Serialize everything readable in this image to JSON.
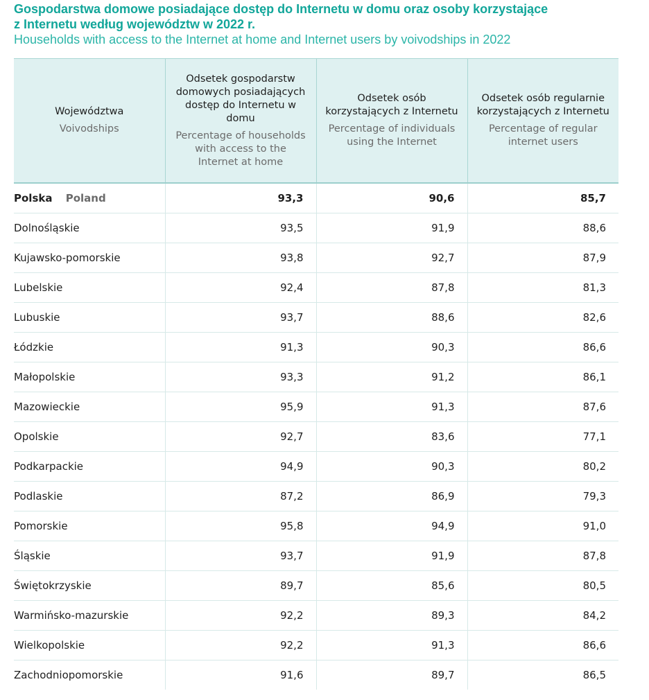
{
  "title": {
    "pl_line1": "Gospodarstwa domowe posiadające dostęp do Internetu w domu oraz osoby korzystające",
    "pl_line2": "z Internetu według województw w 2022 r.",
    "en": "Households with access to the Internet at home and Internet users by voivodships in 2022"
  },
  "headers": [
    {
      "pl": "Województwa",
      "en": "Voivodships"
    },
    {
      "pl": "Odsetek gospodarstw domowych posiadających dostęp do Internetu w domu",
      "en": "Percentage of households with access to the Internet at home"
    },
    {
      "pl": "Odsetek osób korzystających z Internetu",
      "en": "Percentage of individuals using the Internet"
    },
    {
      "pl": "Odsetek osób regularnie korzystających z Internetu",
      "en": "Percentage of regular internet users"
    }
  ],
  "total": {
    "pl": "Polska",
    "en": "Poland",
    "households": "93,3",
    "individuals": "90,6",
    "regular": "85,7"
  },
  "rows": [
    {
      "name": "Dolnośląskie",
      "households": "93,5",
      "individuals": "91,9",
      "regular": "88,6"
    },
    {
      "name": "Kujawsko-pomorskie",
      "households": "93,8",
      "individuals": "92,7",
      "regular": "87,9"
    },
    {
      "name": "Lubelskie",
      "households": "92,4",
      "individuals": "87,8",
      "regular": "81,3"
    },
    {
      "name": "Lubuskie",
      "households": "93,7",
      "individuals": "88,6",
      "regular": "82,6"
    },
    {
      "name": "Łódzkie",
      "households": "91,3",
      "individuals": "90,3",
      "regular": "86,6"
    },
    {
      "name": "Małopolskie",
      "households": "93,3",
      "individuals": "91,2",
      "regular": "86,1"
    },
    {
      "name": "Mazowieckie",
      "households": "95,9",
      "individuals": "91,3",
      "regular": "87,6"
    },
    {
      "name": "Opolskie",
      "households": "92,7",
      "individuals": "83,6",
      "regular": "77,1"
    },
    {
      "name": "Podkarpackie",
      "households": "94,9",
      "individuals": "90,3",
      "regular": "80,2"
    },
    {
      "name": "Podlaskie",
      "households": "87,2",
      "individuals": "86,9",
      "regular": "79,3"
    },
    {
      "name": "Pomorskie",
      "households": "95,8",
      "individuals": "94,9",
      "regular": "91,0"
    },
    {
      "name": "Śląskie",
      "households": "93,7",
      "individuals": "91,9",
      "regular": "87,8"
    },
    {
      "name": "Świętokrzyskie",
      "households": "89,7",
      "individuals": "85,6",
      "regular": "80,5"
    },
    {
      "name": "Warmińsko-mazurskie",
      "households": "92,2",
      "individuals": "89,3",
      "regular": "84,2"
    },
    {
      "name": "Wielkopolskie",
      "households": "92,2",
      "individuals": "91,3",
      "regular": "86,6"
    },
    {
      "name": "Zachodniopomorskie",
      "households": "91,6",
      "individuals": "89,7",
      "regular": "86,5"
    }
  ],
  "colors": {
    "title": "#12a69a",
    "subtitle": "#2bb5a8",
    "header_bg": "#dff1f1"
  }
}
